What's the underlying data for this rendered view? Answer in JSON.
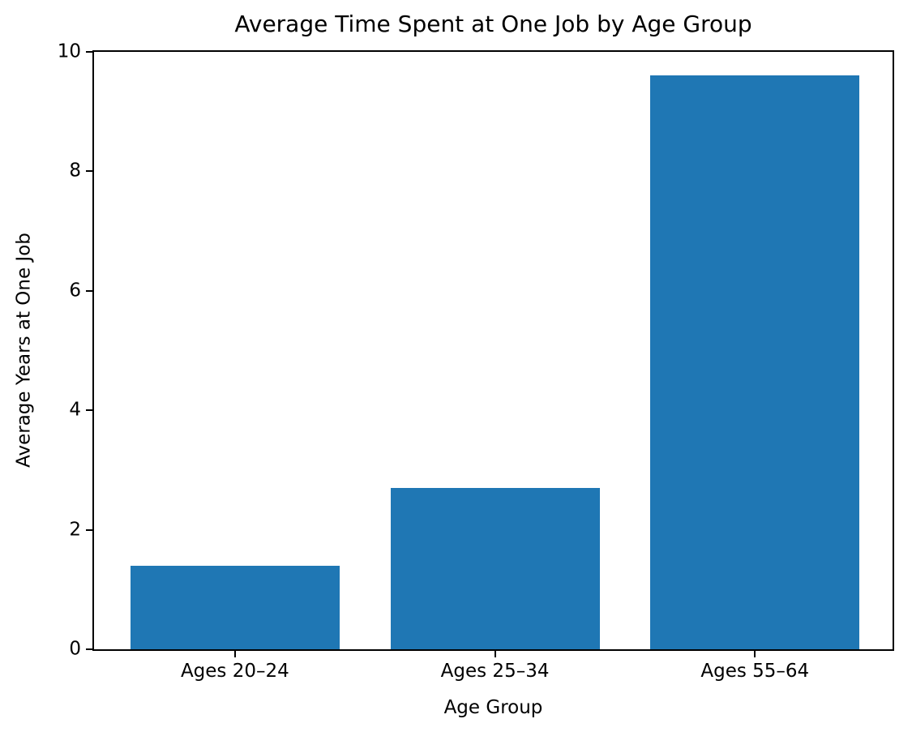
{
  "chart_data": {
    "type": "bar",
    "title": "Average Time Spent at One Job by Age Group",
    "xlabel": "Age Group",
    "ylabel": "Average Years at One Job",
    "categories": [
      "Ages 20–24",
      "Ages 25–34",
      "Ages 55–64"
    ],
    "values": [
      1.4,
      2.7,
      9.6
    ],
    "ylim": [
      0,
      10
    ],
    "yticks": [
      0,
      2,
      4,
      6,
      8,
      10
    ],
    "bar_color": "#1f77b4",
    "background_color": "#ffffff",
    "spine_color": "#000000",
    "grid": false,
    "legend_position": "none"
  }
}
